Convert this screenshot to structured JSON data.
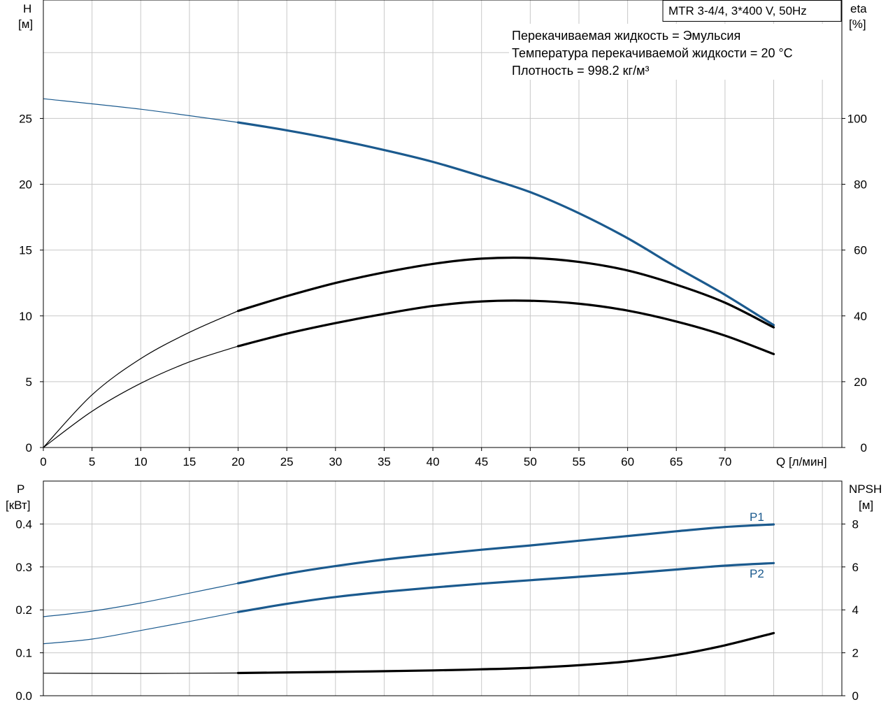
{
  "badge": "MTR 3-4/4, 3*400 V, 50Hz",
  "info_lines": [
    "Перекачиваемая жидкость = Эмульсия",
    "Температура перекачиваемой жидкости = 20 °C",
    "Плотность = 998.2 кг/м³"
  ],
  "colors": {
    "blue": "#1b5a8e",
    "black": "#000000",
    "grid": "#c8c8c8",
    "frame": "#000000"
  },
  "chart_data": [
    {
      "type": "line",
      "name": "top",
      "xlabel": "Q [л/мин]",
      "ylabel": [
        "H",
        "[м]"
      ],
      "y2label": [
        "eta",
        "[%]"
      ],
      "xlim": [
        0,
        82
      ],
      "ylim": [
        0,
        34
      ],
      "y2lim": [
        0,
        136
      ],
      "x_ticks": [
        0,
        5,
        10,
        15,
        20,
        25,
        30,
        35,
        40,
        45,
        50,
        55,
        60,
        65,
        70
      ],
      "x_tick_labels": [
        "0",
        "5",
        "10",
        "15",
        "20",
        "25",
        "30",
        "35",
        "40",
        "45",
        "50",
        "55",
        "60",
        "65",
        "70"
      ],
      "y_ticks": [
        0,
        5,
        10,
        15,
        20,
        25
      ],
      "y_tick_labels": [
        "0",
        "5",
        "10",
        "15",
        "20",
        "25"
      ],
      "y2_ticks": [
        0,
        20,
        40,
        60,
        80,
        100
      ],
      "y2_tick_labels": [
        "0",
        "20",
        "40",
        "60",
        "80",
        "100"
      ],
      "grid": true,
      "series": [
        {
          "axis": "left",
          "color": "blue",
          "thick_from": 20,
          "x": [
            0,
            10,
            20,
            25,
            30,
            35,
            40,
            45,
            50,
            55,
            60,
            65,
            70,
            75
          ],
          "y": [
            26.5,
            25.7,
            24.7,
            24.1,
            23.4,
            22.6,
            21.7,
            20.6,
            19.4,
            17.8,
            15.9,
            13.7,
            11.6,
            9.3
          ]
        },
        {
          "axis": "right",
          "color": "black",
          "thick_from": 20,
          "x": [
            0,
            5,
            10,
            15,
            20,
            25,
            30,
            35,
            40,
            45,
            50,
            55,
            60,
            65,
            70,
            75
          ],
          "y": [
            0,
            16,
            27,
            35,
            41.5,
            46,
            50,
            53.2,
            55.8,
            57.4,
            57.6,
            56.4,
            53.8,
            49.5,
            44,
            36.5
          ]
        },
        {
          "axis": "right",
          "color": "black",
          "thick_from": 20,
          "x": [
            0,
            5,
            10,
            15,
            20,
            25,
            30,
            35,
            40,
            45,
            50,
            55,
            60,
            65,
            70,
            75
          ],
          "y": [
            0,
            11,
            19.5,
            26,
            30.8,
            34.6,
            37.8,
            40.6,
            43,
            44.4,
            44.6,
            43.7,
            41.6,
            38.3,
            34,
            28.4
          ]
        }
      ]
    },
    {
      "type": "line",
      "name": "bottom",
      "ylabel": [
        "P",
        "[кВт]"
      ],
      "y2label": [
        "NPSH",
        "[м]"
      ],
      "xlim": [
        0,
        82
      ],
      "ylim": [
        0,
        0.5
      ],
      "y2lim": [
        0,
        10
      ],
      "y_ticks": [
        0,
        0.1,
        0.2,
        0.3,
        0.4
      ],
      "y_tick_labels": [
        "0.0",
        "0.1",
        "0.2",
        "0.3",
        "0.4"
      ],
      "y2_ticks": [
        0,
        2,
        4,
        6,
        8
      ],
      "y2_tick_labels": [
        "0",
        "2",
        "4",
        "6",
        "8"
      ],
      "grid": true,
      "series": [
        {
          "name": "P1",
          "axis": "left",
          "color": "blue",
          "thick_from": 20,
          "x": [
            0,
            5,
            10,
            15,
            20,
            25,
            30,
            35,
            40,
            45,
            50,
            55,
            60,
            65,
            70,
            75
          ],
          "y": [
            0.184,
            0.197,
            0.216,
            0.239,
            0.262,
            0.284,
            0.302,
            0.317,
            0.329,
            0.34,
            0.35,
            0.361,
            0.372,
            0.383,
            0.393,
            0.399
          ]
        },
        {
          "name": "P2",
          "axis": "left",
          "color": "blue",
          "thick_from": 20,
          "x": [
            0,
            5,
            10,
            15,
            20,
            25,
            30,
            35,
            40,
            45,
            50,
            55,
            60,
            65,
            70,
            75
          ],
          "y": [
            0.121,
            0.132,
            0.152,
            0.173,
            0.195,
            0.214,
            0.23,
            0.242,
            0.252,
            0.261,
            0.269,
            0.277,
            0.285,
            0.294,
            0.303,
            0.309
          ]
        },
        {
          "name": "NPSH",
          "axis": "right",
          "color": "black",
          "thick_from": 20,
          "x": [
            0,
            10,
            20,
            30,
            40,
            45,
            50,
            55,
            60,
            65,
            70,
            75
          ],
          "y": [
            1.05,
            1.04,
            1.06,
            1.11,
            1.18,
            1.23,
            1.3,
            1.42,
            1.6,
            1.9,
            2.35,
            2.92
          ]
        }
      ]
    }
  ]
}
